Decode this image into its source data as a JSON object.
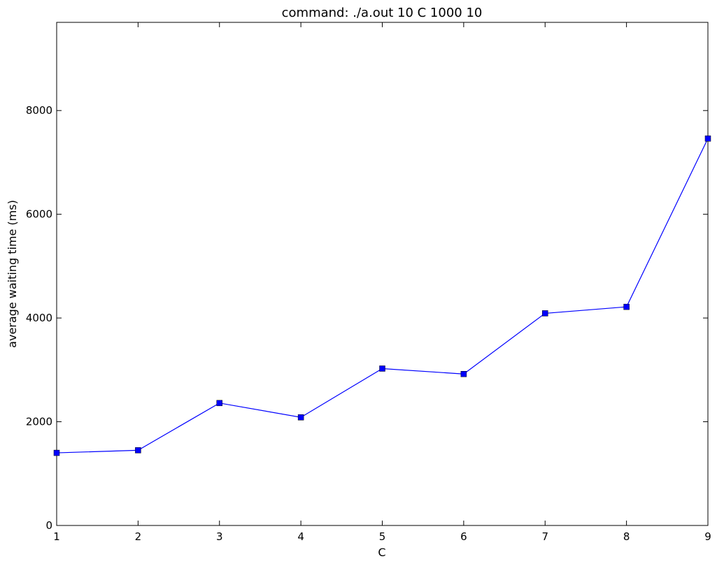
{
  "chart_data": {
    "type": "line",
    "title": "command: ./a.out 10 C 1000 10",
    "xlabel": "C",
    "ylabel": "average waiting time (ms)",
    "x": [
      1,
      2,
      3,
      4,
      5,
      6,
      7,
      8,
      9
    ],
    "series": [
      {
        "values": [
          1400,
          1450,
          2360,
          2085,
          3025,
          2920,
          4090,
          4215,
          7460
        ],
        "color": "#0000ff",
        "marker": "square"
      }
    ],
    "xlim": [
      1,
      9
    ],
    "ylim": [
      0,
      9700
    ],
    "xticks": [
      1,
      2,
      3,
      4,
      5,
      6,
      7,
      8,
      9
    ],
    "yticks": [
      0,
      2000,
      4000,
      6000,
      8000
    ],
    "grid": false,
    "legend": "none"
  }
}
